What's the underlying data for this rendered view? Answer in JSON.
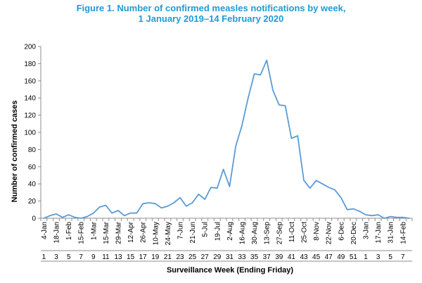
{
  "chart_data": {
    "type": "line",
    "title": "Figure 1. Number of confirmed measles notifications by week,",
    "subtitle": "1 January 2019–14 February 2020",
    "xlabel": "Surveillance Week (Ending Friday)",
    "ylabel": "Number of confirmed cases",
    "ylim": [
      0,
      200
    ],
    "yticks": [
      0,
      20,
      40,
      60,
      80,
      100,
      120,
      140,
      160,
      180,
      200
    ],
    "grid": false,
    "legend": "none",
    "line_color": "#5b9bd5",
    "title_color": "#1f9ad6",
    "date_labels": [
      "4-Jan",
      "18-Jan",
      "1-Feb",
      "15-Feb",
      "1-Mar",
      "15-Mar",
      "29-Mar",
      "12-Apr",
      "26-Apr",
      "10-May",
      "24-May",
      "7-Jun",
      "21-Jun",
      "5-Jul",
      "19-Jul",
      "2-Aug",
      "16-Aug",
      "30-Aug",
      "13-Sep",
      "27-Sep",
      "11-Oct",
      "25-Oct",
      "8-Nov",
      "22-Nov",
      "6-Dec",
      "20-Dec",
      "3-Jan",
      "17-Jan",
      "31-Jan",
      "14-Feb"
    ],
    "week_labels": [
      "1",
      "3",
      "5",
      "7",
      "9",
      "11",
      "13",
      "15",
      "17",
      "19",
      "21",
      "23",
      "25",
      "27",
      "29",
      "31",
      "33",
      "35",
      "37",
      "39",
      "41",
      "43",
      "45",
      "47",
      "49",
      "51",
      "1",
      "3",
      "5",
      "7"
    ],
    "series": [
      {
        "values": [
          0,
          3,
          5,
          1,
          4,
          1,
          0,
          2,
          6,
          13,
          15,
          6,
          9,
          3,
          6,
          6,
          17,
          18,
          17,
          12,
          14,
          18,
          24,
          14,
          18,
          28,
          22,
          36,
          35,
          57,
          37,
          84,
          108,
          140,
          168,
          167,
          184,
          149,
          132,
          131,
          93,
          96,
          44,
          35,
          44,
          40,
          36,
          33,
          24,
          10,
          11,
          8,
          4,
          3,
          4,
          0,
          2,
          1,
          1,
          0
        ]
      }
    ]
  }
}
